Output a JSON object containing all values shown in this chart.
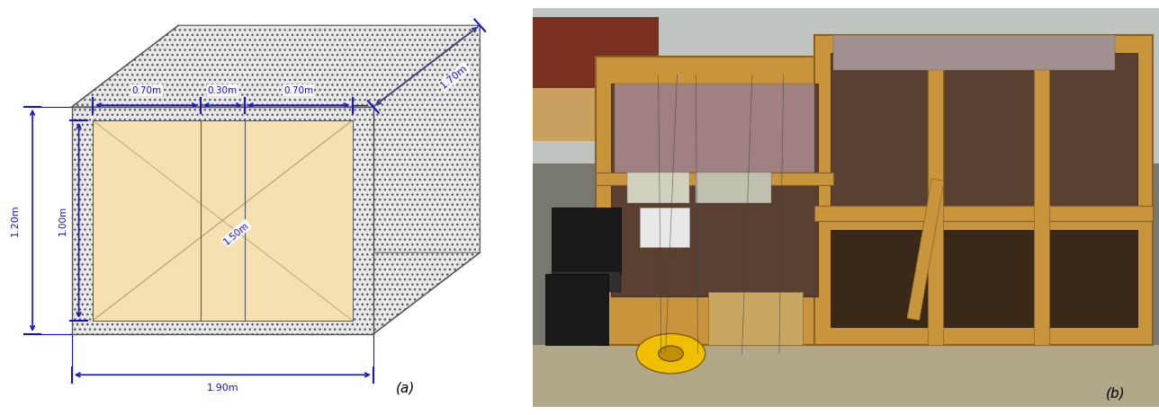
{
  "fig_width": 12.88,
  "fig_height": 4.62,
  "label_a": "(a)",
  "label_b": "(b)",
  "blue_color": "#1414CC",
  "gray_color": "#555555",
  "hatch_bg": "#E8E8E8",
  "fill_color": "#F5E0B0",
  "white_color": "#FFFFFF",
  "bg_color": "#FFFFFF",
  "dims": {
    "width_190": "1.90m",
    "height_120": "1.20m",
    "depth_170": "1.70m",
    "inner_width_150": "1.50m",
    "inner_height_100": "1.00m",
    "seg_070a": "0.70m",
    "seg_030": "0.30m",
    "seg_070b": "0.70m"
  },
  "photo": {
    "bg_wall": "#C8C8C0",
    "bg_upper": "#B8C8C8",
    "floor": "#B0A888",
    "wood_light": "#C8943C",
    "wood_dark": "#8B6020",
    "soil_dark": "#5A4030",
    "equipment_dark": "#282828",
    "equipment_gray": "#808080",
    "chair_dark": "#1A1A1A",
    "cable_yellow": "#F0C000",
    "box_beige": "#C8A860",
    "red_obj": "#8B2020",
    "wall_gray": "#C0C4C0"
  }
}
